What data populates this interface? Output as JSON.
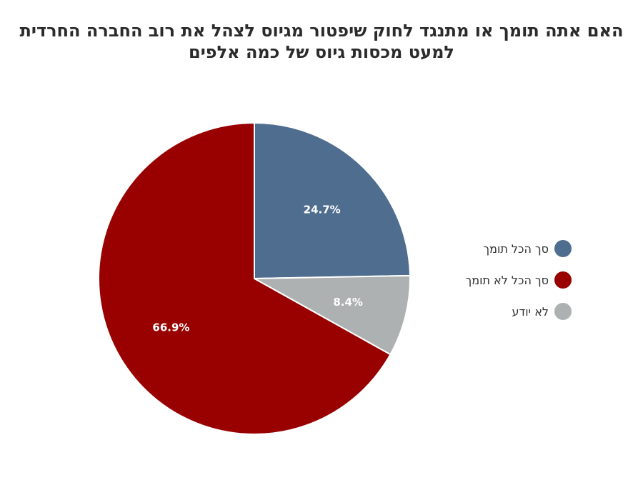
{
  "chart_data": {
    "type": "pie",
    "title": "האם אתה תומך או מתנגד לחוק שיפטור מגיוס לצהל את רוב החברה החרדית למעט מכסות גיוס של כמה אלפים",
    "series": [
      {
        "name": "סך הכל תומך",
        "value": 24.7,
        "label": "24.7%",
        "color": "#4f6d8f"
      },
      {
        "name": "לא יודע",
        "value": 8.4,
        "label": "8.4%",
        "color": "#adb1b2"
      },
      {
        "name": "סך הכל לא תומך",
        "value": 66.9,
        "label": "66.9%",
        "color": "#990000"
      }
    ],
    "legend": {
      "placement": "right",
      "order": [
        "סך הכל תומך",
        "סך הכל לא תומך",
        "לא יודע"
      ]
    },
    "start_angle": "12 o'clock",
    "direction": "clockwise"
  }
}
